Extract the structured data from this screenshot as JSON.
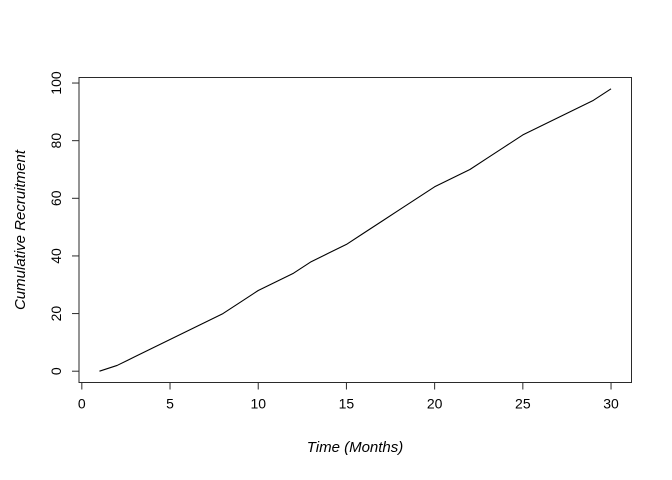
{
  "figure": {
    "background": "#ffffff",
    "line_color": "#000000",
    "box_color": "#2a2a2a",
    "tick_color": "#2a2a2a",
    "text_color": "#000000"
  },
  "chart_data": {
    "type": "line",
    "title": "",
    "xlabel": "Time (Months)",
    "ylabel": "Cumulative Recruitment",
    "x": [
      1,
      2,
      3,
      4,
      5,
      6,
      7,
      8,
      9,
      10,
      11,
      12,
      13,
      14,
      15,
      16,
      17,
      18,
      19,
      20,
      21,
      22,
      23,
      24,
      25,
      26,
      27,
      28,
      29,
      30
    ],
    "y": [
      0,
      2,
      5,
      8,
      11,
      14,
      17,
      20,
      24,
      28,
      31,
      34,
      38,
      41,
      44,
      48,
      52,
      56,
      60,
      64,
      67,
      70,
      74,
      78,
      82,
      85,
      88,
      91,
      94,
      98
    ],
    "xticks": [
      0,
      5,
      10,
      15,
      20,
      25,
      30
    ],
    "yticks": [
      0,
      20,
      40,
      60,
      80,
      100
    ],
    "xlim": [
      -0.16,
      31.16
    ],
    "ylim": [
      -3.92,
      101.92
    ],
    "grid": false,
    "legend": null,
    "y_tick_labels_rotated": true,
    "marker": "none"
  }
}
